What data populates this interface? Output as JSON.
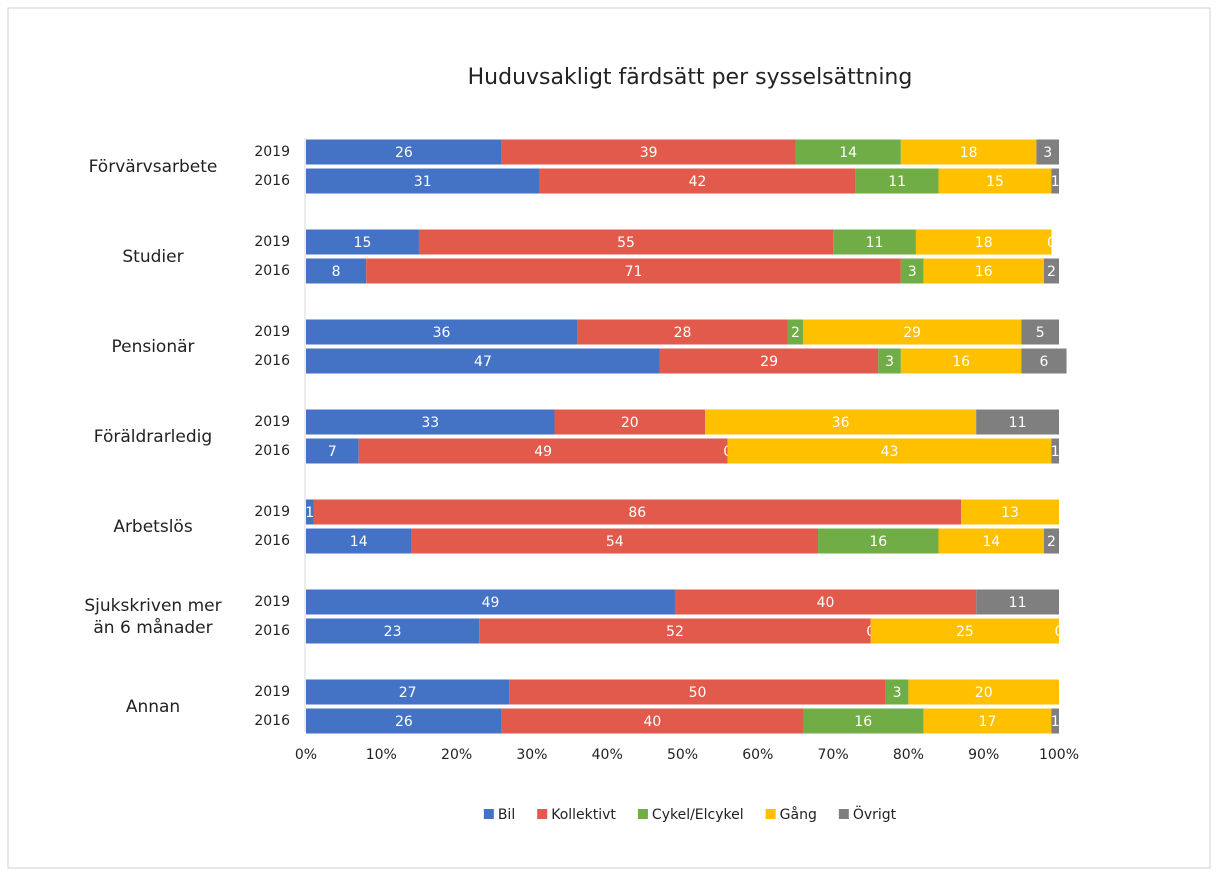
{
  "chart_data": {
    "type": "stacked_bar_horizontal",
    "title": "Huduvsakligt färdsätt per sysselsättning",
    "groups": [
      "Förvärvsarbete",
      "Studier",
      "Pensionär",
      "Föräldrarledig",
      "Arbetslös",
      "Sjukskriven mer än 6 månader",
      "Annan"
    ],
    "categories": [
      "2019",
      "2016",
      "2019",
      "2016",
      "2019",
      "2016",
      "2019",
      "2016",
      "2019",
      "2016",
      "2019",
      "2016",
      "2019",
      "2016"
    ],
    "series": [
      {
        "name": "Bil",
        "color": "#4472c4",
        "values": [
          26,
          31,
          15,
          8,
          36,
          47,
          33,
          7,
          1,
          14,
          49,
          23,
          27,
          26
        ]
      },
      {
        "name": "Kollektivt",
        "color": "#e15a4c",
        "values": [
          39,
          42,
          55,
          71,
          28,
          29,
          20,
          49,
          86,
          54,
          40,
          52,
          50,
          40
        ]
      },
      {
        "name": "Cykel/Elcykel",
        "color": "#70ad47",
        "values": [
          14,
          11,
          11,
          3,
          2,
          3,
          null,
          0,
          null,
          16,
          null,
          0,
          3,
          16
        ]
      },
      {
        "name": "Gång",
        "color": "#ffc000",
        "values": [
          18,
          15,
          18,
          16,
          29,
          16,
          36,
          43,
          13,
          14,
          null,
          25,
          20,
          17
        ]
      },
      {
        "name": "Övrigt",
        "color": "#7f7f7f",
        "values": [
          3,
          1,
          0,
          2,
          5,
          6,
          11,
          1,
          null,
          2,
          11,
          0,
          null,
          1
        ]
      }
    ],
    "xlim": [
      0,
      100
    ],
    "xticks": [
      {
        "value": 0,
        "label": "0%"
      },
      {
        "value": 10,
        "label": "10%"
      },
      {
        "value": 20,
        "label": "20%"
      },
      {
        "value": 30,
        "label": "30%"
      },
      {
        "value": 40,
        "label": "40%"
      },
      {
        "value": 50,
        "label": "50%"
      },
      {
        "value": 60,
        "label": "60%"
      },
      {
        "value": 70,
        "label": "70%"
      },
      {
        "value": 80,
        "label": "80%"
      },
      {
        "value": 90,
        "label": "90%"
      },
      {
        "value": 100,
        "label": "100%"
      }
    ],
    "grid": false,
    "legend": "bottom"
  }
}
